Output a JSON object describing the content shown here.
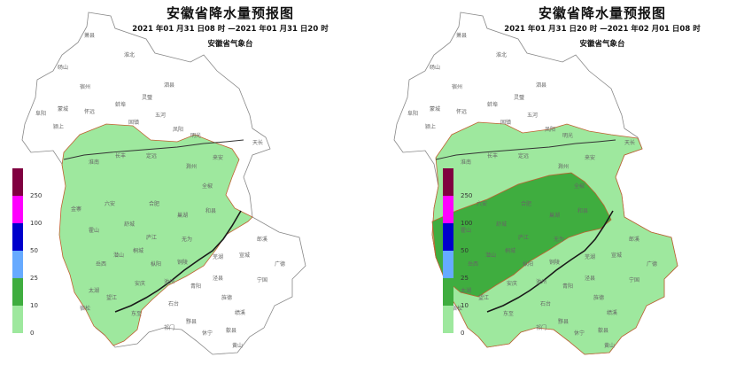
{
  "maps": [
    {
      "title": "安徽省降水量预报图",
      "period": "2021 年01 月31 日08 时 —2021 年01 月31 日20 时",
      "issuer": "安徽省气象台"
    },
    {
      "title": "安徽省降水量预报图",
      "period": "2021 年01 月31 日20 时 —2021 年02 月01 日08 时",
      "issuer": "安徽省气象台"
    }
  ],
  "legend": {
    "labels": [
      "250",
      "100",
      "50",
      "25",
      "10",
      "0"
    ],
    "colors": [
      "#800040",
      "#ff00ff",
      "#0000cc",
      "#66aaff",
      "#3fad3f",
      "#9ee89e"
    ]
  },
  "colors": {
    "light_rain": "#9ee89e",
    "moderate_rain": "#3fad3f",
    "no_rain": "#ffffff",
    "border": "#888888",
    "rain_contour": "#c06030",
    "river": "#1a1a1a"
  },
  "place_labels": [
    "萧县",
    "淮北",
    "砀山",
    "宿州",
    "灵璧",
    "泗县",
    "蒙城",
    "怀远",
    "蚌埠",
    "五河",
    "固镇",
    "凤阳",
    "明光",
    "天长",
    "阜阳",
    "颍上",
    "淮南",
    "长丰",
    "定远",
    "滁州",
    "来安",
    "六安",
    "合肥",
    "巢湖",
    "全椒",
    "和县",
    "金寨",
    "霍山",
    "舒城",
    "庐江",
    "无为",
    "岳西",
    "潜山",
    "桐城",
    "枞阳",
    "安庆",
    "池州",
    "铜陵",
    "芜湖",
    "宣城",
    "郎溪",
    "广德",
    "太湖",
    "宿松",
    "望江",
    "东至",
    "石台",
    "青阳",
    "泾县",
    "宁国",
    "旌德",
    "绩溪",
    "黟县",
    "祁门",
    "休宁",
    "歙县",
    "黄山"
  ]
}
